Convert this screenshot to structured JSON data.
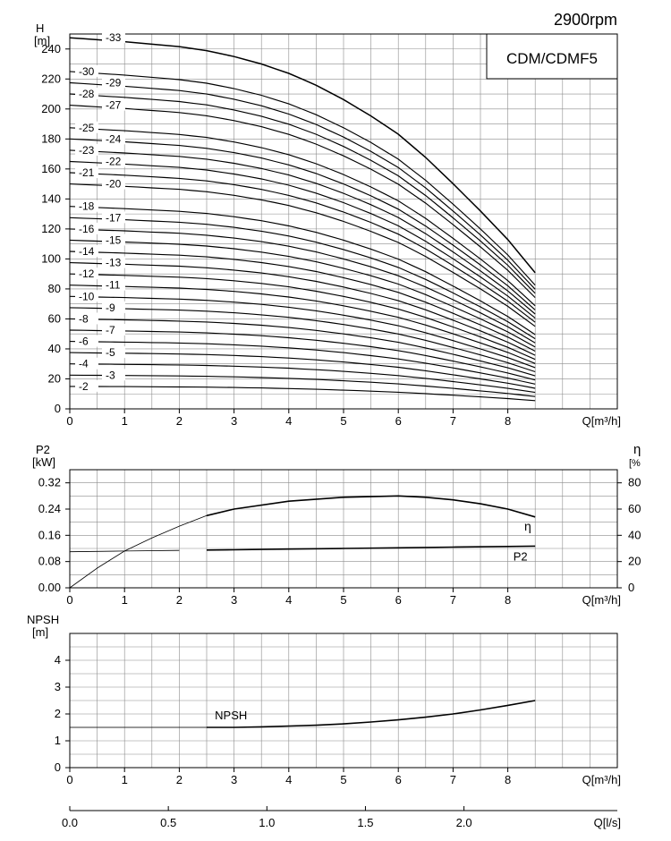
{
  "speed_label": "2900rpm",
  "model_label": "CDM/CDMF5",
  "chart_data": [
    {
      "type": "line",
      "ylabel": "H",
      "yunit": "[m]",
      "xlabel": "Q[m³/h]",
      "xlim": [
        0,
        10
      ],
      "ylim": [
        0,
        250
      ],
      "xticks": [
        0,
        1,
        2,
        3,
        4,
        5,
        6,
        7,
        8
      ],
      "yticks": [
        0,
        20,
        40,
        60,
        80,
        100,
        120,
        140,
        160,
        180,
        200,
        220,
        240
      ],
      "grid": true,
      "stage_curves": {
        "stages": [
          2,
          3,
          4,
          5,
          6,
          7,
          8,
          9,
          10,
          11,
          12,
          13,
          14,
          15,
          16,
          17,
          18,
          20,
          21,
          22,
          23,
          24,
          25,
          27,
          28,
          29,
          30,
          33
        ],
        "head_per_stage_curve": {
          "q": [
            0,
            1,
            2,
            2.5,
            3,
            3.5,
            4,
            4.5,
            5,
            5.5,
            6,
            6.5,
            7,
            7.5,
            8,
            8.5
          ],
          "h": [
            7.5,
            7.42,
            7.32,
            7.24,
            7.12,
            6.97,
            6.78,
            6.54,
            6.25,
            5.92,
            5.55,
            5.08,
            4.55,
            4.0,
            3.42,
            2.75
          ]
        }
      },
      "curve_labels": [
        "-2",
        "-3",
        "-4",
        "-5",
        "-6",
        "-7",
        "-8",
        "-9",
        "-10",
        "-11",
        "-12",
        "-13",
        "-14",
        "-15",
        "-16",
        "-17",
        "-18",
        "-20",
        "-21",
        "-22",
        "-23",
        "-24",
        "-25",
        "-27",
        "-28",
        "-29",
        "-30",
        "-33"
      ]
    },
    {
      "type": "line",
      "ylabel_left": "P2",
      "yunit_left": "[kW]",
      "ylabel_right": "η",
      "yunit_right": "[%",
      "xlabel": "Q[m³/h]",
      "xlim": [
        0,
        10
      ],
      "ylim_left": [
        0,
        0.36
      ],
      "ylim_right": [
        0,
        90
      ],
      "xticks": [
        0,
        1,
        2,
        3,
        4,
        5,
        6,
        7,
        8
      ],
      "yticks_left": [
        "0.00",
        "0.08",
        "0.16",
        "0.24",
        "0.32"
      ],
      "yticks_right": [
        "0",
        "20",
        "40",
        "60",
        "80"
      ],
      "grid": true,
      "series": [
        {
          "name": "η",
          "axis": "right",
          "x": [
            0,
            0.5,
            1,
            1.5,
            2,
            2.5,
            3,
            4,
            5,
            6,
            6.5,
            7,
            7.5,
            8,
            8.5
          ],
          "y": [
            0,
            15,
            28,
            38,
            47,
            55,
            60,
            66,
            69,
            70,
            69,
            67,
            64,
            60,
            54
          ]
        },
        {
          "name": "P2",
          "axis": "left",
          "x": [
            0,
            1,
            2,
            3,
            4,
            5,
            6,
            7,
            8,
            8.5
          ],
          "y": [
            0.11,
            0.112,
            0.114,
            0.116,
            0.118,
            0.12,
            0.122,
            0.124,
            0.126,
            0.127
          ]
        }
      ]
    },
    {
      "type": "line",
      "ylabel": "NPSH",
      "yunit": "[m]",
      "xlabel": "Q[m³/h]",
      "xlim": [
        0,
        10
      ],
      "ylim": [
        0,
        5
      ],
      "xticks": [
        0,
        1,
        2,
        3,
        4,
        5,
        6,
        7,
        8
      ],
      "yticks": [
        0,
        1,
        2,
        3,
        4
      ],
      "grid": true,
      "series": [
        {
          "name": "NPSH",
          "x": [
            0,
            1,
            2,
            2.5,
            3,
            3.5,
            4,
            4.5,
            5,
            5.5,
            6,
            6.5,
            7,
            7.5,
            8,
            8.5
          ],
          "y": [
            1.5,
            1.5,
            1.5,
            1.5,
            1.5,
            1.52,
            1.55,
            1.58,
            1.63,
            1.7,
            1.78,
            1.88,
            2.0,
            2.15,
            2.32,
            2.5
          ]
        }
      ]
    },
    {
      "type": "axis",
      "xlabel": "Q[l/s]",
      "xlim": [
        0,
        2.778
      ],
      "xticks": [
        "0.0",
        "0.5",
        "1.0",
        "1.5",
        "2.0"
      ]
    }
  ]
}
